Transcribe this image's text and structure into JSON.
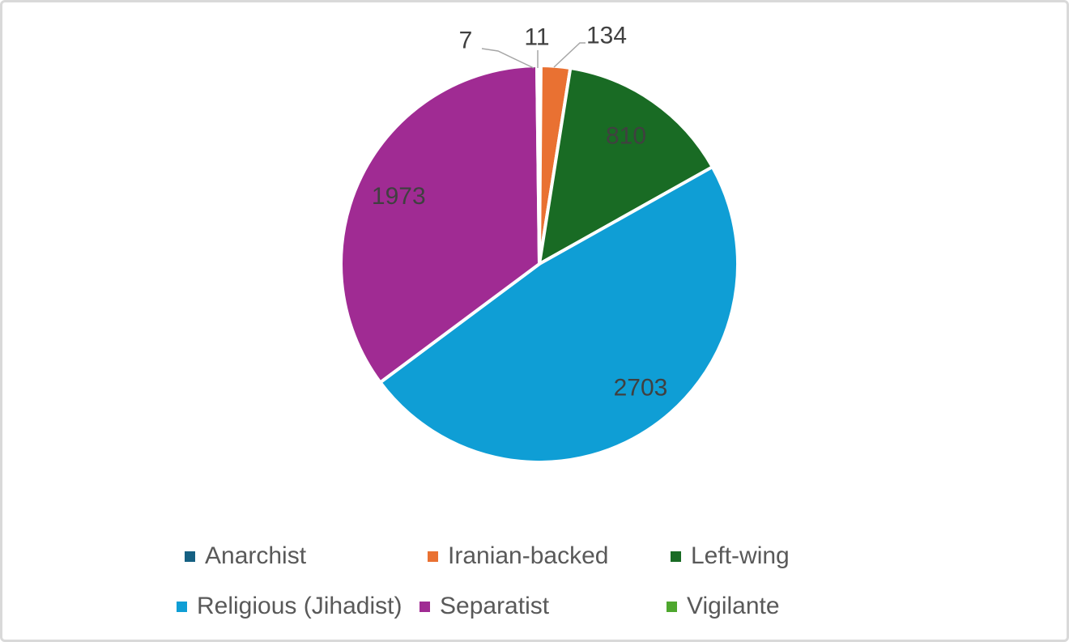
{
  "chart_data": {
    "type": "pie",
    "categories": [
      "Anarchist",
      "Iranian-backed",
      "Left-wing",
      "Religious (Jihadist)",
      "Separatist",
      "Vigilante"
    ],
    "values": [
      7,
      134,
      810,
      2703,
      1973,
      11
    ],
    "data_labels": [
      "7",
      "134",
      "810",
      "2703",
      "1973",
      "11"
    ],
    "colors": [
      "#156082",
      "#E97132",
      "#196B24",
      "#0F9ED5",
      "#A02B93",
      "#4EA72E"
    ],
    "start_angle_deg": 0,
    "direction": "clockwise",
    "legend_position": "bottom",
    "slice_border_color": "#FFFFFF",
    "label_text_color": "#404040",
    "legend_text_color": "#595959",
    "leader_line_color": "#A6A6A6"
  }
}
